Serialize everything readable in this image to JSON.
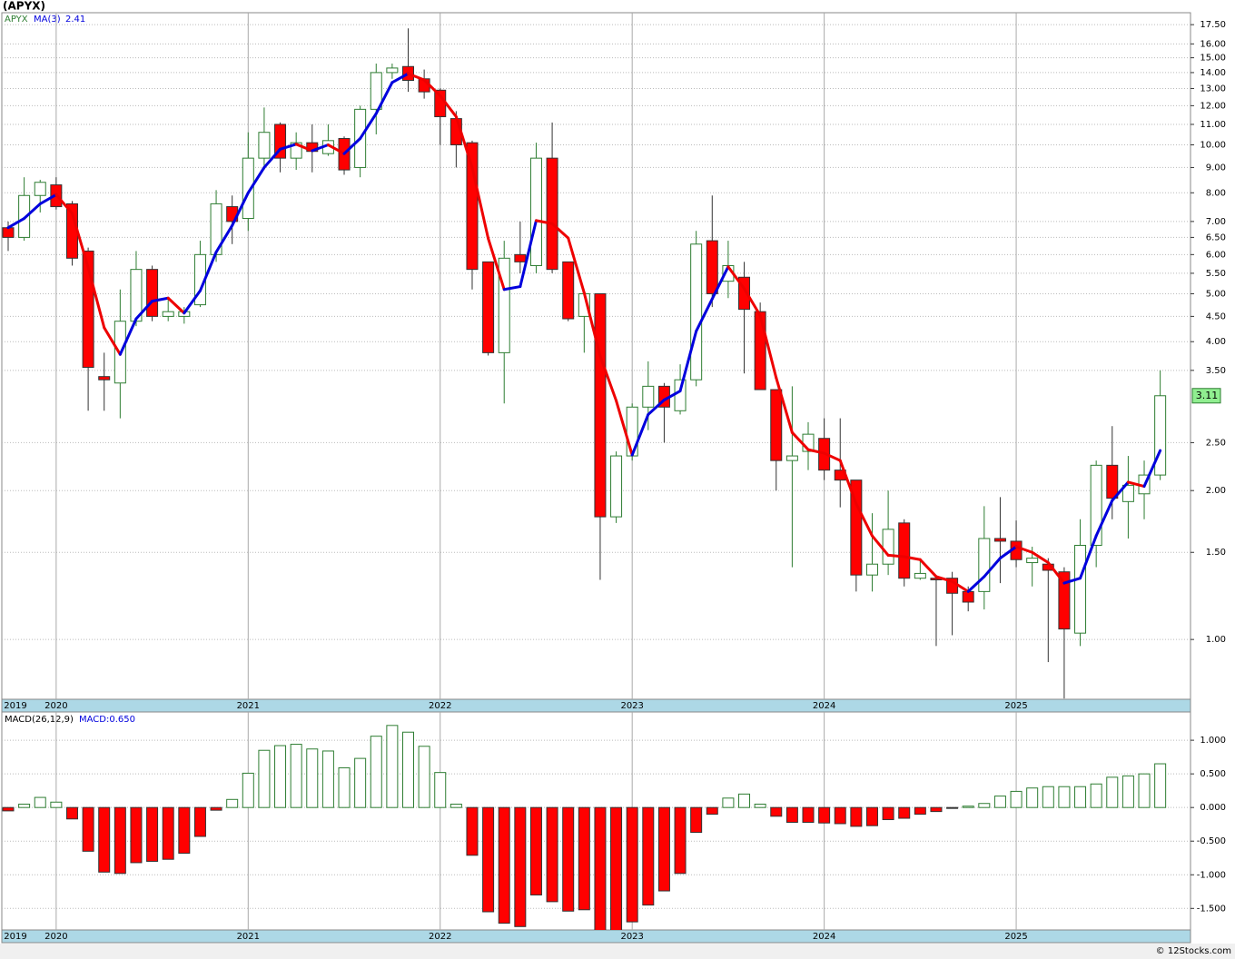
{
  "chart_data": [
    {
      "type": "candlestick",
      "title": "(APYX)",
      "legend_label": "APYX",
      "categories": [
        "2019",
        null,
        null,
        "2020",
        null,
        null,
        null,
        null,
        null,
        null,
        null,
        null,
        null,
        null,
        null,
        "2021",
        null,
        null,
        null,
        null,
        null,
        null,
        null,
        null,
        null,
        null,
        null,
        "2022",
        null,
        null,
        null,
        null,
        null,
        null,
        null,
        null,
        null,
        null,
        null,
        "2023",
        null,
        null,
        null,
        null,
        null,
        null,
        null,
        null,
        null,
        null,
        null,
        "2024",
        null,
        null,
        null,
        null,
        null,
        null,
        null,
        null,
        null,
        null,
        null,
        "2025",
        null,
        null,
        null,
        null,
        null,
        null,
        null,
        null,
        null
      ],
      "open": [
        6.8,
        6.5,
        7.9,
        8.3,
        7.6,
        6.1,
        3.4,
        3.3,
        4.4,
        5.6,
        4.5,
        4.5,
        4.75,
        6.0,
        7.5,
        7.1,
        9.4,
        11.0,
        9.4,
        10.1,
        9.6,
        10.3,
        9.0,
        11.8,
        14.0,
        14.4,
        13.6,
        12.9,
        11.3,
        10.1,
        5.8,
        3.8,
        6.0,
        5.7,
        9.4,
        5.8,
        4.5,
        5.0,
        1.77,
        2.35,
        2.95,
        3.25,
        2.9,
        3.35,
        6.4,
        5.3,
        5.4,
        4.6,
        3.2,
        2.3,
        2.4,
        2.55,
        2.2,
        2.1,
        1.35,
        1.42,
        1.72,
        1.33,
        1.33,
        1.33,
        1.25,
        1.25,
        1.6,
        1.58,
        1.43,
        1.42,
        1.37,
        1.03,
        1.55,
        2.25,
        1.9,
        1.97,
        2.15
      ],
      "high": [
        7.0,
        8.6,
        8.5,
        8.6,
        7.7,
        6.2,
        3.8,
        5.1,
        6.1,
        5.7,
        4.9,
        4.7,
        6.4,
        8.1,
        7.9,
        10.6,
        11.9,
        11.1,
        10.6,
        11.0,
        11.0,
        10.4,
        12.0,
        14.6,
        14.6,
        17.2,
        14.2,
        13.0,
        11.7,
        10.2,
        5.8,
        6.4,
        7.0,
        10.1,
        11.1,
        5.8,
        5.1,
        5.0,
        2.4,
        3.0,
        3.65,
        3.3,
        3.6,
        6.7,
        7.9,
        6.4,
        5.8,
        4.8,
        3.2,
        3.25,
        2.75,
        2.8,
        2.8,
        2.1,
        1.8,
        2.0,
        1.75,
        1.45,
        1.34,
        1.37,
        1.28,
        1.86,
        1.94,
        1.74,
        1.54,
        1.46,
        1.4,
        1.75,
        2.3,
        2.7,
        2.35,
        2.3,
        3.5
      ],
      "low": [
        6.1,
        6.4,
        7.3,
        7.4,
        5.7,
        2.9,
        2.9,
        2.8,
        4.3,
        4.4,
        4.4,
        4.35,
        4.7,
        5.8,
        6.3,
        6.7,
        8.9,
        8.8,
        8.9,
        8.8,
        9.5,
        8.7,
        8.6,
        10.5,
        13.6,
        12.8,
        12.4,
        10.0,
        9.0,
        5.1,
        3.75,
        3.0,
        5.5,
        5.5,
        5.5,
        4.4,
        3.8,
        1.32,
        1.72,
        2.3,
        2.65,
        2.5,
        2.85,
        3.25,
        4.7,
        4.9,
        3.45,
        3.2,
        2.0,
        1.4,
        2.2,
        2.1,
        1.85,
        1.25,
        1.25,
        1.35,
        1.28,
        1.32,
        0.97,
        1.02,
        1.14,
        1.15,
        1.3,
        1.4,
        1.28,
        0.9,
        0.76,
        0.97,
        1.4,
        1.75,
        1.6,
        1.75,
        2.1
      ],
      "close": [
        6.5,
        7.9,
        8.4,
        7.5,
        5.9,
        3.55,
        3.35,
        4.4,
        5.6,
        4.5,
        4.6,
        4.6,
        6.0,
        7.6,
        7.0,
        9.4,
        10.6,
        9.4,
        10.1,
        9.7,
        10.2,
        8.9,
        11.8,
        14.0,
        14.3,
        13.5,
        12.8,
        11.4,
        10.0,
        5.6,
        3.8,
        5.9,
        5.8,
        9.4,
        5.6,
        4.45,
        5.0,
        1.77,
        2.35,
        2.95,
        3.25,
        2.95,
        3.35,
        6.3,
        5.0,
        5.7,
        4.65,
        3.2,
        2.3,
        2.35,
        2.6,
        2.2,
        2.1,
        1.35,
        1.42,
        1.67,
        1.33,
        1.36,
        1.32,
        1.24,
        1.19,
        1.6,
        1.58,
        1.45,
        1.46,
        1.38,
        1.05,
        1.55,
        2.25,
        1.93,
        2.05,
        2.15,
        3.11
      ],
      "up_color": "#2e7d32",
      "down_color": "#ff0000",
      "overlay": {
        "name": "MA(3)",
        "up_color": "#0000dd",
        "down_color": "#ee0000",
        "values": [
          6.8,
          7.1,
          7.6,
          7.93,
          7.27,
          5.65,
          4.27,
          3.77,
          4.45,
          4.83,
          4.9,
          4.57,
          5.07,
          6.07,
          6.87,
          8.0,
          9.0,
          9.8,
          10.03,
          9.73,
          10.0,
          9.6,
          10.3,
          11.57,
          13.37,
          13.93,
          13.53,
          12.57,
          11.4,
          9.0,
          6.47,
          5.1,
          5.17,
          7.03,
          6.93,
          6.48,
          5.02,
          3.74,
          3.04,
          2.36,
          2.85,
          3.05,
          3.18,
          4.2,
          4.88,
          5.67,
          5.12,
          4.52,
          3.38,
          2.62,
          2.42,
          2.38,
          2.3,
          1.88,
          1.62,
          1.48,
          1.47,
          1.45,
          1.34,
          1.31,
          1.25,
          1.34,
          1.46,
          1.54,
          1.5,
          1.43,
          1.3,
          1.33,
          1.62,
          1.91,
          2.08,
          2.04,
          2.41
        ]
      },
      "log_scale": true,
      "grid": true,
      "ylim": [
        0.757,
        18.5
      ],
      "yticks": [
        {
          "value": 1,
          "label": "1.00"
        },
        {
          "value": 1.5,
          "label": "1.50"
        },
        {
          "value": 2,
          "label": "2.00"
        },
        {
          "value": 2.5,
          "label": "2.50"
        },
        {
          "value": 3.5,
          "label": "3.50"
        },
        {
          "value": 4,
          "label": "4.00"
        },
        {
          "value": 4.5,
          "label": "4.50"
        },
        {
          "value": 5,
          "label": "5.00"
        },
        {
          "value": 5.5,
          "label": "5.50"
        },
        {
          "value": 6,
          "label": "6.00"
        },
        {
          "value": 6.5,
          "label": "6.50"
        },
        {
          "value": 7,
          "label": "7.00"
        },
        {
          "value": 8,
          "label": "8.00"
        },
        {
          "value": 9,
          "label": "9.00"
        },
        {
          "value": 10,
          "label": "10.00"
        },
        {
          "value": 11,
          "label": "11.00"
        },
        {
          "value": 12,
          "label": "12.00"
        },
        {
          "value": 13,
          "label": "13.00"
        },
        {
          "value": 14,
          "label": "14.00"
        },
        {
          "value": 15,
          "label": "15.00"
        },
        {
          "value": 16,
          "label": "16.00"
        },
        {
          "value": 17.5,
          "label": "17.50"
        }
      ]
    },
    {
      "type": "bar",
      "title": "MACD(26,12,9)",
      "readout": "MACD:0.650",
      "categories": [
        "2019",
        null,
        null,
        "2020",
        null,
        null,
        null,
        null,
        null,
        null,
        null,
        null,
        null,
        null,
        null,
        "2021",
        null,
        null,
        null,
        null,
        null,
        null,
        null,
        null,
        null,
        null,
        null,
        "2022",
        null,
        null,
        null,
        null,
        null,
        null,
        null,
        null,
        null,
        null,
        null,
        "2023",
        null,
        null,
        null,
        null,
        null,
        null,
        null,
        null,
        null,
        null,
        null,
        "2024",
        null,
        null,
        null,
        null,
        null,
        null,
        null,
        null,
        null,
        null,
        null,
        "2025",
        null,
        null,
        null,
        null,
        null,
        null,
        null,
        null,
        null
      ],
      "values": [
        -0.05,
        0.05,
        0.15,
        0.08,
        -0.17,
        -0.65,
        -0.96,
        -0.98,
        -0.82,
        -0.8,
        -0.77,
        -0.68,
        -0.43,
        -0.04,
        0.12,
        0.51,
        0.85,
        0.92,
        0.94,
        0.87,
        0.84,
        0.59,
        0.73,
        1.06,
        1.22,
        1.12,
        0.91,
        0.52,
        0.05,
        -0.71,
        -1.55,
        -1.72,
        -1.77,
        -1.3,
        -1.4,
        -1.54,
        -1.52,
        -1.83,
        -1.85,
        -1.7,
        -1.45,
        -1.24,
        -0.98,
        -0.37,
        -0.1,
        0.14,
        0.2,
        0.05,
        -0.13,
        -0.22,
        -0.22,
        -0.23,
        -0.24,
        -0.28,
        -0.27,
        -0.18,
        -0.16,
        -0.1,
        -0.06,
        -0.01,
        0.02,
        0.06,
        0.17,
        0.24,
        0.29,
        0.31,
        0.31,
        0.31,
        0.35,
        0.45,
        0.47,
        0.5,
        0.65
      ],
      "up_color": "#2e7d32",
      "down_color": "#ff0000",
      "grid": true,
      "ylim": [
        -1.82,
        1.42
      ],
      "yticks": [
        {
          "value": 1,
          "label": "1.000"
        },
        {
          "value": 0.5,
          "label": "0.500"
        },
        {
          "value": 0,
          "label": "0.000"
        },
        {
          "value": -0.5,
          "label": "-0.500"
        },
        {
          "value": -1,
          "label": "-1.000"
        },
        {
          "value": -1.5,
          "label": "-1.500"
        }
      ]
    }
  ],
  "footer": "© 12Stocks.com"
}
